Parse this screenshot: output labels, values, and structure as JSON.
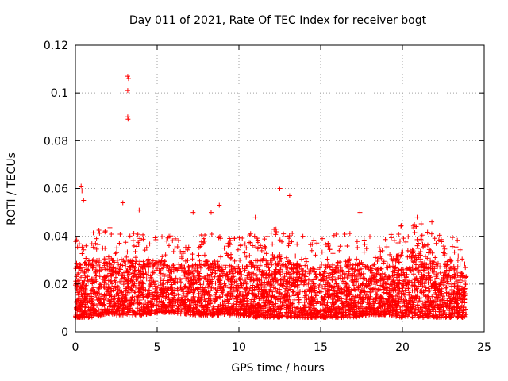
{
  "chart_data": {
    "type": "scatter",
    "title": "Day 011 of 2021, Rate Of TEC Index for receiver bogt",
    "xlabel": "GPS time / hours",
    "ylabel": "ROTI / TECUs",
    "xlim": [
      0,
      25
    ],
    "ylim": [
      0,
      0.12
    ],
    "x_ticks": [
      "0",
      "5",
      "10",
      "15",
      "20",
      "25"
    ],
    "y_ticks": [
      "0",
      "0.02",
      "0.04",
      "0.06",
      "0.08",
      "0.1",
      "0.12"
    ],
    "grid": true,
    "marker": "+",
    "color": "#ff0000",
    "series": [
      {
        "name": "ROTI",
        "notable_points": [
          {
            "x": 3.2,
            "y": 0.107
          },
          {
            "x": 3.25,
            "y": 0.106
          },
          {
            "x": 3.2,
            "y": 0.101
          },
          {
            "x": 3.2,
            "y": 0.09
          },
          {
            "x": 3.22,
            "y": 0.089
          },
          {
            "x": 0.35,
            "y": 0.061
          },
          {
            "x": 0.4,
            "y": 0.059
          },
          {
            "x": 12.5,
            "y": 0.06
          },
          {
            "x": 13.1,
            "y": 0.057
          },
          {
            "x": 2.9,
            "y": 0.054
          },
          {
            "x": 0.5,
            "y": 0.055
          },
          {
            "x": 3.9,
            "y": 0.051
          },
          {
            "x": 7.2,
            "y": 0.05
          },
          {
            "x": 8.3,
            "y": 0.05
          },
          {
            "x": 8.8,
            "y": 0.053
          },
          {
            "x": 17.4,
            "y": 0.05
          },
          {
            "x": 11.0,
            "y": 0.048
          },
          {
            "x": 21.8,
            "y": 0.046
          },
          {
            "x": 20.9,
            "y": 0.048
          }
        ],
        "bulk_envelope": {
          "hours": [
            0,
            1,
            2,
            3,
            4,
            5,
            6,
            7,
            8,
            9,
            10,
            11,
            12,
            13,
            14,
            15,
            16,
            17,
            18,
            19,
            20,
            21,
            22,
            23,
            24
          ],
          "typical_low": [
            0.006,
            0.006,
            0.007,
            0.007,
            0.007,
            0.008,
            0.008,
            0.007,
            0.007,
            0.007,
            0.007,
            0.006,
            0.006,
            0.006,
            0.006,
            0.006,
            0.006,
            0.006,
            0.007,
            0.007,
            0.006,
            0.006,
            0.006,
            0.006,
            0.006
          ],
          "typical_high": [
            0.028,
            0.03,
            0.032,
            0.03,
            0.03,
            0.03,
            0.028,
            0.028,
            0.03,
            0.028,
            0.028,
            0.03,
            0.032,
            0.03,
            0.028,
            0.028,
            0.03,
            0.03,
            0.028,
            0.028,
            0.034,
            0.034,
            0.03,
            0.028,
            0.026
          ]
        }
      }
    ]
  }
}
